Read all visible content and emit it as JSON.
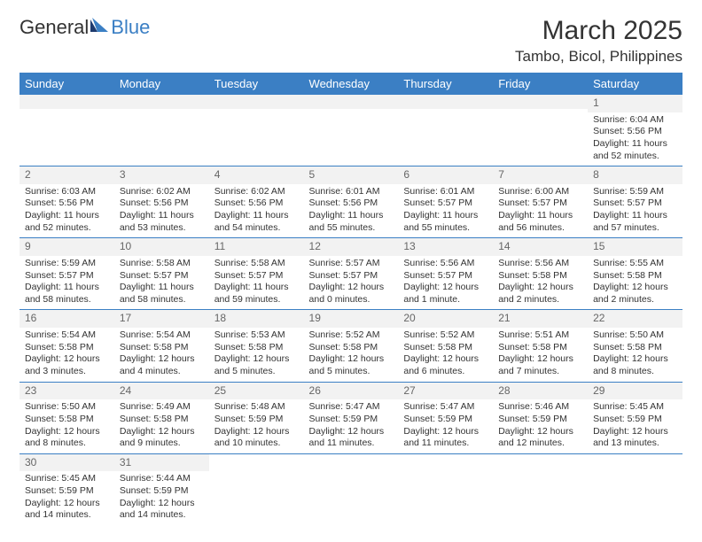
{
  "brand": {
    "part1": "General",
    "part2": "Blue"
  },
  "title": "March 2025",
  "location": "Tambo, Bicol, Philippines",
  "colors": {
    "accent": "#3b7fc4",
    "header_text": "#ffffff",
    "day_bg": "#f2f2f2",
    "text": "#333333"
  },
  "days": [
    "Sunday",
    "Monday",
    "Tuesday",
    "Wednesday",
    "Thursday",
    "Friday",
    "Saturday"
  ],
  "cells": [
    [
      null,
      null,
      null,
      null,
      null,
      null,
      {
        "n": "1",
        "sr": "Sunrise: 6:04 AM",
        "ss": "Sunset: 5:56 PM",
        "dl": "Daylight: 11 hours and 52 minutes."
      }
    ],
    [
      {
        "n": "2",
        "sr": "Sunrise: 6:03 AM",
        "ss": "Sunset: 5:56 PM",
        "dl": "Daylight: 11 hours and 52 minutes."
      },
      {
        "n": "3",
        "sr": "Sunrise: 6:02 AM",
        "ss": "Sunset: 5:56 PM",
        "dl": "Daylight: 11 hours and 53 minutes."
      },
      {
        "n": "4",
        "sr": "Sunrise: 6:02 AM",
        "ss": "Sunset: 5:56 PM",
        "dl": "Daylight: 11 hours and 54 minutes."
      },
      {
        "n": "5",
        "sr": "Sunrise: 6:01 AM",
        "ss": "Sunset: 5:56 PM",
        "dl": "Daylight: 11 hours and 55 minutes."
      },
      {
        "n": "6",
        "sr": "Sunrise: 6:01 AM",
        "ss": "Sunset: 5:57 PM",
        "dl": "Daylight: 11 hours and 55 minutes."
      },
      {
        "n": "7",
        "sr": "Sunrise: 6:00 AM",
        "ss": "Sunset: 5:57 PM",
        "dl": "Daylight: 11 hours and 56 minutes."
      },
      {
        "n": "8",
        "sr": "Sunrise: 5:59 AM",
        "ss": "Sunset: 5:57 PM",
        "dl": "Daylight: 11 hours and 57 minutes."
      }
    ],
    [
      {
        "n": "9",
        "sr": "Sunrise: 5:59 AM",
        "ss": "Sunset: 5:57 PM",
        "dl": "Daylight: 11 hours and 58 minutes."
      },
      {
        "n": "10",
        "sr": "Sunrise: 5:58 AM",
        "ss": "Sunset: 5:57 PM",
        "dl": "Daylight: 11 hours and 58 minutes."
      },
      {
        "n": "11",
        "sr": "Sunrise: 5:58 AM",
        "ss": "Sunset: 5:57 PM",
        "dl": "Daylight: 11 hours and 59 minutes."
      },
      {
        "n": "12",
        "sr": "Sunrise: 5:57 AM",
        "ss": "Sunset: 5:57 PM",
        "dl": "Daylight: 12 hours and 0 minutes."
      },
      {
        "n": "13",
        "sr": "Sunrise: 5:56 AM",
        "ss": "Sunset: 5:57 PM",
        "dl": "Daylight: 12 hours and 1 minute."
      },
      {
        "n": "14",
        "sr": "Sunrise: 5:56 AM",
        "ss": "Sunset: 5:58 PM",
        "dl": "Daylight: 12 hours and 2 minutes."
      },
      {
        "n": "15",
        "sr": "Sunrise: 5:55 AM",
        "ss": "Sunset: 5:58 PM",
        "dl": "Daylight: 12 hours and 2 minutes."
      }
    ],
    [
      {
        "n": "16",
        "sr": "Sunrise: 5:54 AM",
        "ss": "Sunset: 5:58 PM",
        "dl": "Daylight: 12 hours and 3 minutes."
      },
      {
        "n": "17",
        "sr": "Sunrise: 5:54 AM",
        "ss": "Sunset: 5:58 PM",
        "dl": "Daylight: 12 hours and 4 minutes."
      },
      {
        "n": "18",
        "sr": "Sunrise: 5:53 AM",
        "ss": "Sunset: 5:58 PM",
        "dl": "Daylight: 12 hours and 5 minutes."
      },
      {
        "n": "19",
        "sr": "Sunrise: 5:52 AM",
        "ss": "Sunset: 5:58 PM",
        "dl": "Daylight: 12 hours and 5 minutes."
      },
      {
        "n": "20",
        "sr": "Sunrise: 5:52 AM",
        "ss": "Sunset: 5:58 PM",
        "dl": "Daylight: 12 hours and 6 minutes."
      },
      {
        "n": "21",
        "sr": "Sunrise: 5:51 AM",
        "ss": "Sunset: 5:58 PM",
        "dl": "Daylight: 12 hours and 7 minutes."
      },
      {
        "n": "22",
        "sr": "Sunrise: 5:50 AM",
        "ss": "Sunset: 5:58 PM",
        "dl": "Daylight: 12 hours and 8 minutes."
      }
    ],
    [
      {
        "n": "23",
        "sr": "Sunrise: 5:50 AM",
        "ss": "Sunset: 5:58 PM",
        "dl": "Daylight: 12 hours and 8 minutes."
      },
      {
        "n": "24",
        "sr": "Sunrise: 5:49 AM",
        "ss": "Sunset: 5:58 PM",
        "dl": "Daylight: 12 hours and 9 minutes."
      },
      {
        "n": "25",
        "sr": "Sunrise: 5:48 AM",
        "ss": "Sunset: 5:59 PM",
        "dl": "Daylight: 12 hours and 10 minutes."
      },
      {
        "n": "26",
        "sr": "Sunrise: 5:47 AM",
        "ss": "Sunset: 5:59 PM",
        "dl": "Daylight: 12 hours and 11 minutes."
      },
      {
        "n": "27",
        "sr": "Sunrise: 5:47 AM",
        "ss": "Sunset: 5:59 PM",
        "dl": "Daylight: 12 hours and 11 minutes."
      },
      {
        "n": "28",
        "sr": "Sunrise: 5:46 AM",
        "ss": "Sunset: 5:59 PM",
        "dl": "Daylight: 12 hours and 12 minutes."
      },
      {
        "n": "29",
        "sr": "Sunrise: 5:45 AM",
        "ss": "Sunset: 5:59 PM",
        "dl": "Daylight: 12 hours and 13 minutes."
      }
    ],
    [
      {
        "n": "30",
        "sr": "Sunrise: 5:45 AM",
        "ss": "Sunset: 5:59 PM",
        "dl": "Daylight: 12 hours and 14 minutes."
      },
      {
        "n": "31",
        "sr": "Sunrise: 5:44 AM",
        "ss": "Sunset: 5:59 PM",
        "dl": "Daylight: 12 hours and 14 minutes."
      },
      null,
      null,
      null,
      null,
      null
    ]
  ]
}
